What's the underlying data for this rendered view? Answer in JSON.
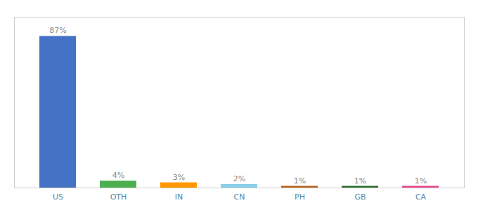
{
  "chart_data": {
    "type": "bar",
    "categories": [
      "US",
      "OTH",
      "IN",
      "CN",
      "PH",
      "GB",
      "CA"
    ],
    "values": [
      87,
      4,
      3,
      2,
      1,
      1,
      1
    ],
    "value_labels": [
      "87%",
      "4%",
      "3%",
      "2%",
      "1%",
      "1%",
      "1%"
    ],
    "colors": [
      "#4472c4",
      "#4CAF50",
      "#FF9800",
      "#87CEEB",
      "#b8621b",
      "#2d6e2d",
      "#e8478b"
    ],
    "ylim": [
      0,
      98
    ],
    "data_labels": true,
    "tick_labels": "x"
  }
}
